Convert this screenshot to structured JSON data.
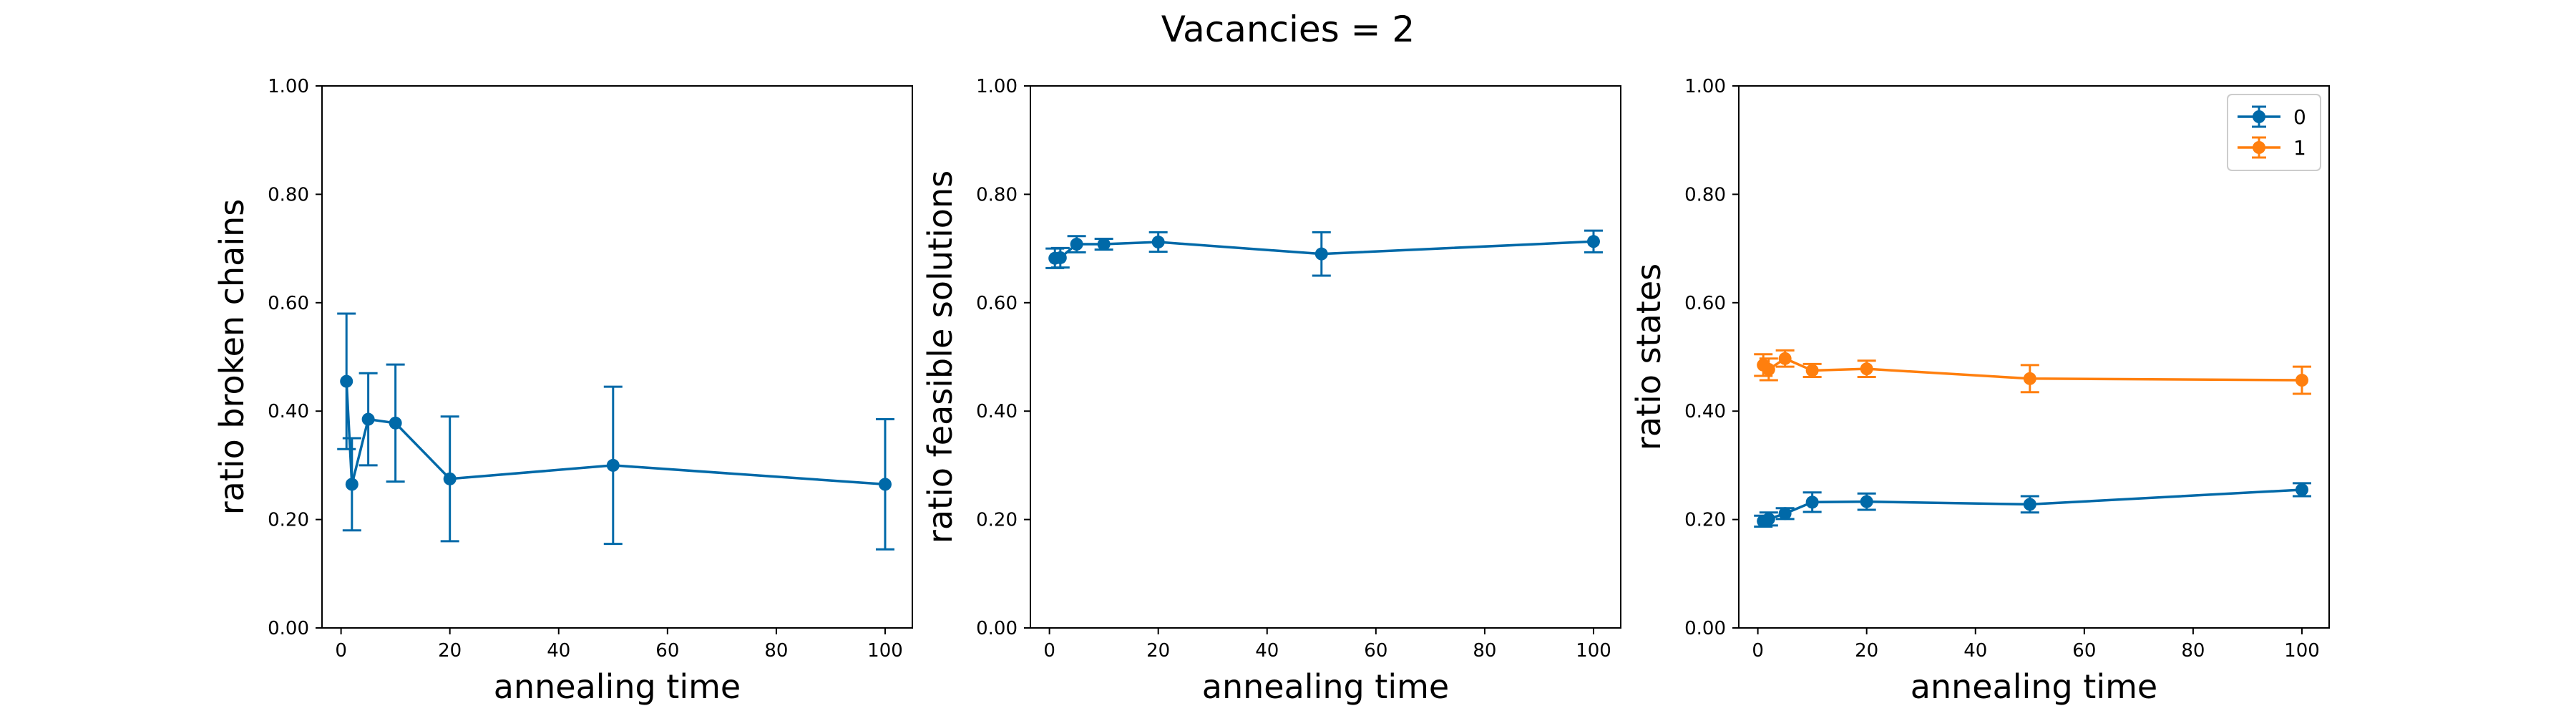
{
  "title": "Vacancies = 2",
  "colors": {
    "series0": "#0069a8",
    "series1": "#ff7f0e"
  },
  "chart_data": [
    {
      "type": "line",
      "xlabel": "annealing time",
      "ylabel": "ratio broken chains",
      "xlim": [
        -3.5,
        105
      ],
      "ylim": [
        0,
        1
      ],
      "xticks": [
        "0",
        "20",
        "40",
        "60",
        "80",
        "100"
      ],
      "yticks": [
        "0.00",
        "0.20",
        "0.40",
        "0.60",
        "0.80",
        "1.00"
      ],
      "grid": false,
      "series": [
        {
          "color": "#0069a8",
          "points": [
            {
              "x": 1,
              "y": 0.455,
              "err": 0.125
            },
            {
              "x": 2,
              "y": 0.265,
              "err": 0.085
            },
            {
              "x": 5,
              "y": 0.385,
              "err": 0.085
            },
            {
              "x": 10,
              "y": 0.378,
              "err": 0.108
            },
            {
              "x": 20,
              "y": 0.275,
              "err": 0.115
            },
            {
              "x": 50,
              "y": 0.3,
              "err": 0.145
            },
            {
              "x": 100,
              "y": 0.265,
              "err": 0.12
            }
          ]
        }
      ]
    },
    {
      "type": "line",
      "xlabel": "annealing time",
      "ylabel": "ratio feasible solutions",
      "xlim": [
        -3.5,
        105
      ],
      "ylim": [
        0,
        1
      ],
      "xticks": [
        "0",
        "20",
        "40",
        "60",
        "80",
        "100"
      ],
      "yticks": [
        "0.00",
        "0.20",
        "0.40",
        "0.60",
        "0.80",
        "1.00"
      ],
      "grid": false,
      "series": [
        {
          "color": "#0069a8",
          "points": [
            {
              "x": 1,
              "y": 0.682,
              "err": 0.018
            },
            {
              "x": 2,
              "y": 0.683,
              "err": 0.018
            },
            {
              "x": 5,
              "y": 0.708,
              "err": 0.015
            },
            {
              "x": 10,
              "y": 0.708,
              "err": 0.01
            },
            {
              "x": 20,
              "y": 0.712,
              "err": 0.018
            },
            {
              "x": 50,
              "y": 0.69,
              "err": 0.04
            },
            {
              "x": 100,
              "y": 0.713,
              "err": 0.02
            }
          ]
        }
      ]
    },
    {
      "type": "line",
      "xlabel": "annealing time",
      "ylabel": "ratio states",
      "xlim": [
        -3.5,
        105
      ],
      "ylim": [
        0,
        1
      ],
      "xticks": [
        "0",
        "20",
        "40",
        "60",
        "80",
        "100"
      ],
      "yticks": [
        "0.00",
        "0.20",
        "0.40",
        "0.60",
        "0.80",
        "1.00"
      ],
      "grid": false,
      "legend": "top-right",
      "series": [
        {
          "name": "0",
          "color": "#0069a8",
          "points": [
            {
              "x": 1,
              "y": 0.197,
              "err": 0.01
            },
            {
              "x": 2,
              "y": 0.201,
              "err": 0.012
            },
            {
              "x": 5,
              "y": 0.211,
              "err": 0.01
            },
            {
              "x": 10,
              "y": 0.232,
              "err": 0.018
            },
            {
              "x": 20,
              "y": 0.233,
              "err": 0.015
            },
            {
              "x": 50,
              "y": 0.228,
              "err": 0.015
            },
            {
              "x": 100,
              "y": 0.255,
              "err": 0.012
            }
          ]
        },
        {
          "name": "1",
          "color": "#ff7f0e",
          "points": [
            {
              "x": 1,
              "y": 0.485,
              "err": 0.02
            },
            {
              "x": 2,
              "y": 0.477,
              "err": 0.02
            },
            {
              "x": 5,
              "y": 0.497,
              "err": 0.015
            },
            {
              "x": 10,
              "y": 0.475,
              "err": 0.012
            },
            {
              "x": 20,
              "y": 0.478,
              "err": 0.015
            },
            {
              "x": 50,
              "y": 0.46,
              "err": 0.025
            },
            {
              "x": 100,
              "y": 0.457,
              "err": 0.025
            }
          ]
        }
      ]
    }
  ]
}
